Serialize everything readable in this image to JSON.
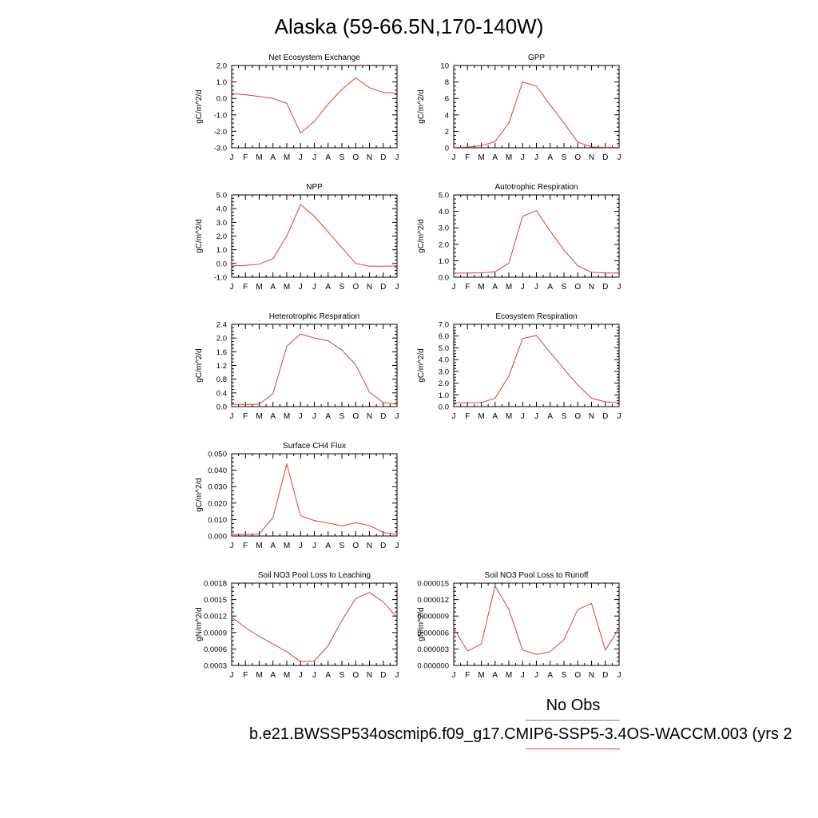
{
  "figure": {
    "title": "Alaska (59-66.5N,170-140W)",
    "legend": {
      "no_obs_label": "No Obs",
      "obs_line_color": "#6d6dea",
      "model_line_color": "#e23a3a"
    },
    "case_label": "b.e21.BWSSP534oscmip6.f09_g17.CMIP6-SSP5-3.4OS-WACCM.003 (yrs 2"
  },
  "chart_data": [
    {
      "type": "line",
      "title": "Net Ecosystem Exchange",
      "ylabel": "gC/m^2/d",
      "categories": [
        "J",
        "F",
        "M",
        "A",
        "M",
        "J",
        "J",
        "A",
        "S",
        "O",
        "N",
        "D",
        "J"
      ],
      "ylim": [
        -3.0,
        2.0
      ],
      "yticks": [
        "-3.0",
        "-2.0",
        "-1.0",
        "0.0",
        "1.0",
        "2.0"
      ],
      "series": [
        {
          "color": "#e23a3a",
          "values": [
            0.3,
            0.22,
            0.12,
            0.0,
            -0.3,
            -2.1,
            -1.4,
            -0.35,
            0.55,
            1.25,
            0.65,
            0.37,
            0.3
          ]
        }
      ]
    },
    {
      "type": "line",
      "title": "GPP",
      "ylabel": "gC/m^2/d",
      "categories": [
        "J",
        "F",
        "M",
        "A",
        "M",
        "J",
        "J",
        "A",
        "S",
        "O",
        "N",
        "D",
        "J"
      ],
      "ylim": [
        0,
        10
      ],
      "yticks": [
        "0",
        "2",
        "4",
        "6",
        "8",
        "10"
      ],
      "series": [
        {
          "color": "#e23a3a",
          "values": [
            0.05,
            0.08,
            0.25,
            0.75,
            3.0,
            8.0,
            7.5,
            5.2,
            3.0,
            0.7,
            0.1,
            0.05,
            0.05
          ]
        }
      ]
    },
    {
      "type": "line",
      "title": "NPP",
      "ylabel": "gC/m^2/d",
      "categories": [
        "J",
        "F",
        "M",
        "A",
        "M",
        "J",
        "J",
        "A",
        "S",
        "O",
        "N",
        "D",
        "J"
      ],
      "ylim": [
        -1.0,
        5.0
      ],
      "yticks": [
        "-1.0",
        "0.0",
        "1.0",
        "2.0",
        "3.0",
        "4.0",
        "5.0"
      ],
      "series": [
        {
          "color": "#e23a3a",
          "values": [
            -0.18,
            -0.14,
            -0.05,
            0.35,
            2.0,
            4.3,
            3.45,
            2.3,
            1.15,
            0.0,
            -0.2,
            -0.2,
            -0.18
          ]
        }
      ]
    },
    {
      "type": "line",
      "title": "Autotrophic Respiration",
      "ylabel": "gC/m^2/d",
      "categories": [
        "J",
        "F",
        "M",
        "A",
        "M",
        "J",
        "J",
        "A",
        "S",
        "O",
        "N",
        "D",
        "J"
      ],
      "ylim": [
        0.0,
        5.0
      ],
      "yticks": [
        "0.0",
        "1.0",
        "2.0",
        "3.0",
        "4.0",
        "5.0"
      ],
      "series": [
        {
          "color": "#e23a3a",
          "values": [
            0.25,
            0.25,
            0.27,
            0.33,
            0.85,
            3.7,
            4.05,
            2.8,
            1.65,
            0.7,
            0.3,
            0.26,
            0.25
          ]
        }
      ]
    },
    {
      "type": "line",
      "title": "Heterotrophic Respiration",
      "ylabel": "gC/m^2/d",
      "categories": [
        "J",
        "F",
        "M",
        "A",
        "M",
        "J",
        "J",
        "A",
        "S",
        "O",
        "N",
        "D",
        "J"
      ],
      "ylim": [
        0.0,
        2.4
      ],
      "yticks": [
        "0.0",
        "0.4",
        "0.8",
        "1.2",
        "1.6",
        "2.0",
        "2.4"
      ],
      "series": [
        {
          "color": "#e23a3a",
          "values": [
            0.07,
            0.06,
            0.07,
            0.38,
            1.76,
            2.12,
            2.0,
            1.92,
            1.65,
            1.22,
            0.42,
            0.12,
            0.07
          ]
        }
      ]
    },
    {
      "type": "line",
      "title": "Ecosystem Respiration",
      "ylabel": "gC/m^2/d",
      "categories": [
        "J",
        "F",
        "M",
        "A",
        "M",
        "J",
        "J",
        "A",
        "S",
        "O",
        "N",
        "D",
        "J"
      ],
      "ylim": [
        0.0,
        7.0
      ],
      "yticks": [
        "0.0",
        "1.0",
        "2.0",
        "3.0",
        "4.0",
        "5.0",
        "6.0",
        "7.0"
      ],
      "series": [
        {
          "color": "#e23a3a",
          "values": [
            0.32,
            0.32,
            0.34,
            0.7,
            2.6,
            5.8,
            6.05,
            4.6,
            3.2,
            1.85,
            0.72,
            0.4,
            0.32
          ]
        }
      ]
    },
    {
      "type": "line",
      "title": "Surface CH4 Flux",
      "ylabel": "gC/m^2/d",
      "categories": [
        "J",
        "F",
        "M",
        "A",
        "M",
        "J",
        "J",
        "A",
        "S",
        "O",
        "N",
        "D",
        "J"
      ],
      "ylim": [
        0.0,
        0.05
      ],
      "yticks": [
        "0.000",
        "0.010",
        "0.020",
        "0.030",
        "0.040",
        "0.050"
      ],
      "series": [
        {
          "color": "#e23a3a",
          "values": [
            0.001,
            0.001,
            0.0012,
            0.0113,
            0.0437,
            0.0123,
            0.0094,
            0.0079,
            0.0062,
            0.008,
            0.0064,
            0.0022,
            0.001
          ]
        }
      ]
    },
    {
      "type": "line",
      "title": "Soil NO3 Pool Loss to Leaching",
      "ylabel": "gN/m^2/d",
      "categories": [
        "J",
        "F",
        "M",
        "A",
        "M",
        "J",
        "J",
        "A",
        "S",
        "O",
        "N",
        "D",
        "J"
      ],
      "ylim": [
        0.0003,
        0.0018
      ],
      "yticks": [
        "0.0003",
        "0.0006",
        "0.0009",
        "0.0012",
        "0.0015",
        "0.0018"
      ],
      "series": [
        {
          "color": "#e23a3a",
          "values": [
            0.00118,
            0.00099,
            0.00083,
            0.00069,
            0.00055,
            0.00037,
            0.00038,
            0.00066,
            0.00112,
            0.00152,
            0.00163,
            0.00146,
            0.00117
          ]
        }
      ]
    },
    {
      "type": "line",
      "title": "Soil NO3 Pool Loss to Runoff",
      "ylabel": "gN/m^2/d",
      "categories": [
        "J",
        "F",
        "M",
        "A",
        "M",
        "J",
        "J",
        "A",
        "S",
        "O",
        "N",
        "D",
        "J"
      ],
      "ylim": [
        0.0,
        1.5e-05
      ],
      "yticks": [
        "0.000000",
        "0.000003",
        "0.000006",
        "0.000009",
        "0.000012",
        "0.000015"
      ],
      "series": [
        {
          "color": "#e23a3a",
          "values": [
            6.8e-06,
            2.6e-06,
            3.9e-06,
            1.45e-05,
            1.02e-05,
            2.8e-06,
            2e-06,
            2.5e-06,
            4.7e-06,
            1.02e-05,
            1.13e-05,
            2.8e-06,
            6.8e-06
          ]
        }
      ]
    }
  ]
}
